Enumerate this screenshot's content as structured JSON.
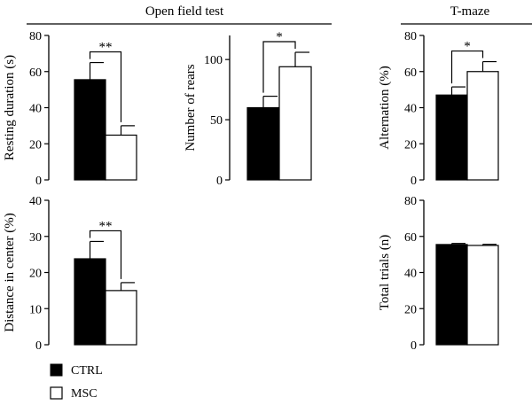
{
  "headers": [
    {
      "label": "Open field test"
    },
    {
      "label": "T-maze"
    }
  ],
  "legend": {
    "entries": [
      {
        "label": "CTRL",
        "color": "#000000"
      },
      {
        "label": "MSC",
        "color": "#ffffff"
      }
    ]
  },
  "chart_data": [
    {
      "type": "bar",
      "categories": [
        "CTRL",
        "MSC"
      ],
      "values": [
        55.5,
        24.8
      ],
      "errors": [
        9.5,
        5.2
      ],
      "colors": [
        "#000000",
        "#ffffff"
      ],
      "ylabel": "Resting duration (s)",
      "ylim": [
        0,
        80
      ],
      "yticks": [
        0,
        20,
        40,
        60,
        80
      ],
      "significance": "**"
    },
    {
      "type": "bar",
      "categories": [
        "CTRL",
        "MSC"
      ],
      "values": [
        60,
        94
      ],
      "errors": [
        9.5,
        12
      ],
      "colors": [
        "#000000",
        "#ffffff"
      ],
      "ylabel": "Number of rears",
      "ylim": [
        0,
        120
      ],
      "yticks": [
        0,
        50,
        100
      ],
      "significance": "*"
    },
    {
      "type": "bar",
      "categories": [
        "CTRL",
        "MSC"
      ],
      "values": [
        47,
        60
      ],
      "errors": [
        4.5,
        5.5
      ],
      "colors": [
        "#000000",
        "#ffffff"
      ],
      "ylabel": "Alternation (%)",
      "ylim": [
        0,
        80
      ],
      "yticks": [
        0,
        20,
        40,
        60,
        80
      ],
      "significance": "*"
    },
    {
      "type": "bar",
      "categories": [
        "CTRL",
        "MSC"
      ],
      "values": [
        23.8,
        15
      ],
      "errors": [
        4.8,
        2.2
      ],
      "colors": [
        "#000000",
        "#ffffff"
      ],
      "ylabel": "Distance in center (%)",
      "ylim": [
        0,
        40
      ],
      "yticks": [
        0,
        10,
        20,
        30,
        40
      ],
      "significance": "**"
    },
    {
      "type": "bar",
      "categories": [
        "CTRL",
        "MSC"
      ],
      "values": [
        55.5,
        55
      ],
      "errors": [
        0.6,
        0.6
      ],
      "colors": [
        "#000000",
        "#ffffff"
      ],
      "ylabel": "Total trials (n)",
      "ylim": [
        0,
        80
      ],
      "yticks": [
        0,
        20,
        40,
        60,
        80
      ],
      "significance": ""
    }
  ]
}
